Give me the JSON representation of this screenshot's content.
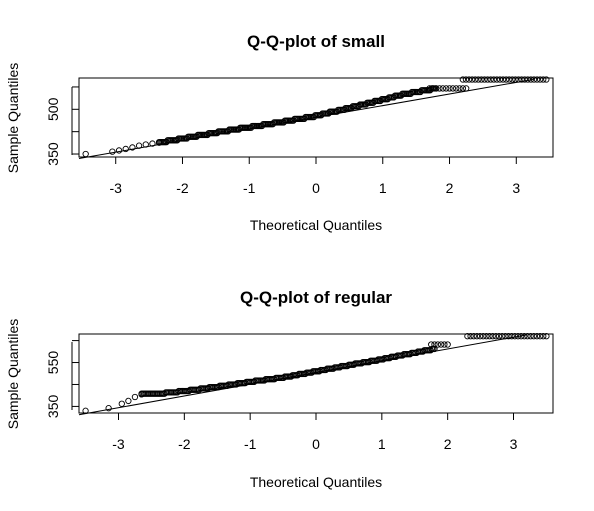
{
  "chart_data": [
    {
      "type": "scatter",
      "title": "Q-Q-plot of small",
      "xlabel": "Theoretical Quantiles",
      "ylabel": "Sample Quantiles",
      "xlim": [
        -3.55,
        3.55
      ],
      "ylim": [
        340,
        605
      ],
      "xticks": [
        "-3",
        "-2",
        "-1",
        "0",
        "1",
        "2",
        "3"
      ],
      "xtick_values": [
        -3,
        -2,
        -1,
        0,
        1,
        2,
        3
      ],
      "yticks": [
        "350",
        "500"
      ],
      "ytick_values": [
        350,
        500
      ],
      "yticks_unlabeled": [
        425,
        575
      ],
      "grid": false,
      "marker": "open-circle",
      "n_points": 300,
      "points": {
        "x": [
          -3.45,
          -3.05,
          -2.95,
          -2.85,
          -2.75,
          -2.65,
          -2.55,
          -2.45,
          -2.35
        ],
        "y": [
          350,
          358,
          362,
          367,
          372,
          378,
          382,
          385,
          388
        ]
      },
      "sample_curve": {
        "x": [
          -2.35,
          -2.0,
          -1.5,
          -1.0,
          -0.5,
          0.0,
          0.5,
          1.0,
          1.3,
          1.6,
          1.8
        ],
        "y": [
          388,
          402,
          422,
          440,
          458,
          478,
          505,
          532,
          550,
          562,
          570
        ]
      },
      "plateaus": [
        {
          "y": 570,
          "x_from": 1.7,
          "x_to": 2.25
        },
        {
          "y": 600,
          "x_from": 2.2,
          "x_to": 3.45
        }
      ],
      "qq_line": {
        "x0": -3.55,
        "y0": 335,
        "x1": 3.25,
        "y1": 600
      },
      "line_color": "#000000"
    },
    {
      "type": "scatter",
      "title": "Q-Q-plot of regular",
      "xlabel": "Theoretical Quantiles",
      "ylabel": "Sample Quantiles",
      "xlim": [
        -3.6,
        3.6
      ],
      "ylim": [
        320,
        680
      ],
      "xticks": [
        "-3",
        "-2",
        "-1",
        "0",
        "1",
        "2",
        "3"
      ],
      "xtick_values": [
        -3,
        -2,
        -1,
        0,
        1,
        2,
        3
      ],
      "yticks": [
        "350",
        "550"
      ],
      "ytick_values": [
        350,
        550
      ],
      "yticks_unlabeled": [
        450,
        650
      ],
      "grid": false,
      "marker": "open-circle",
      "n_points": 300,
      "points": {
        "x": [
          -3.5,
          -3.15,
          -2.95,
          -2.85,
          -2.75,
          -2.65
        ],
        "y": [
          330,
          342,
          362,
          375,
          393,
          405
        ]
      },
      "sample_curve": {
        "x": [
          -2.65,
          -2.4,
          -2.0,
          -1.5,
          -1.0,
          -0.5,
          0.0,
          0.5,
          1.0,
          1.5,
          1.8
        ],
        "y": [
          405,
          408,
          420,
          440,
          462,
          482,
          510,
          538,
          565,
          595,
          612
        ]
      },
      "plateaus": [
        {
          "y": 632,
          "x_from": 1.75,
          "x_to": 2.0
        },
        {
          "y": 670,
          "x_from": 2.3,
          "x_to": 3.5
        }
      ],
      "qq_line": {
        "x0": -3.6,
        "y0": 312,
        "x1": 3.2,
        "y1": 676
      },
      "line_color": "#000000"
    }
  ]
}
